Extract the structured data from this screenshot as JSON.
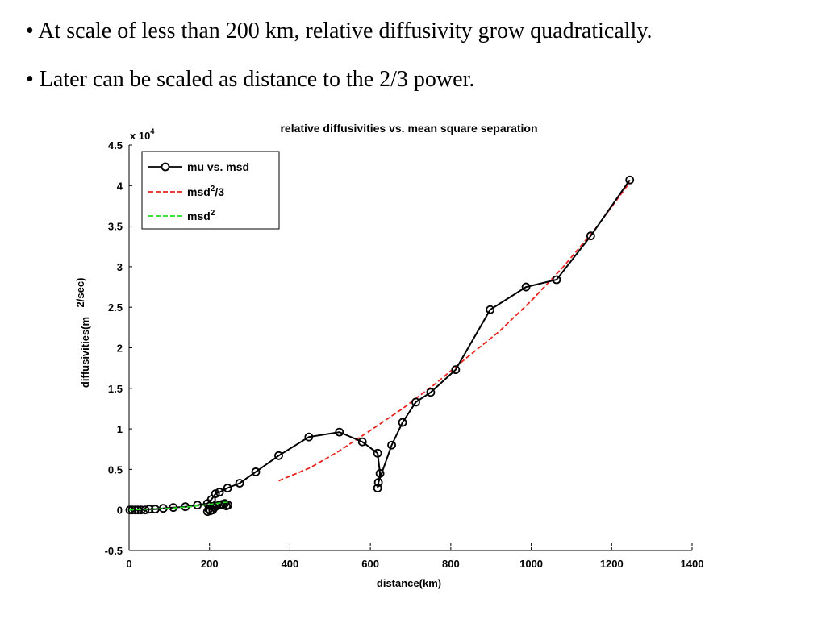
{
  "slide": {
    "bullets": [
      "• At scale of less than 200 km, relative diffusivity grow quadratically.",
      "• Later can be scaled as distance to the 2/3 power."
    ]
  },
  "chart_data": {
    "type": "line",
    "title": "relative diffusivities vs. mean square separation",
    "xlabel": "distance(km)",
    "ylabel": "diffusivities(m",
    "ylabel_unit": "2/sec)",
    "y_multiplier": "x 10",
    "y_multiplier_exp": "4",
    "xlim": [
      0,
      1400
    ],
    "ylim": [
      -0.5,
      4.5
    ],
    "xticks": [
      0,
      200,
      400,
      600,
      800,
      1000,
      1200,
      1400
    ],
    "yticks": [
      -0.5,
      0,
      0.5,
      1,
      1.5,
      2,
      2.5,
      3,
      3.5,
      4,
      4.5
    ],
    "ytick_labels": [
      "-0.5",
      "0",
      "0.5",
      "1",
      "1.5",
      "2",
      "2.5",
      "3",
      "3.5",
      "4",
      "4.5"
    ],
    "grid": false,
    "legend_position": "top-left",
    "series": [
      {
        "name": "mu vs. msd",
        "style": "solid-circle",
        "color": "#000000",
        "x": [
          2,
          8,
          15,
          22,
          30,
          40,
          50,
          65,
          85,
          110,
          140,
          170,
          195,
          205,
          215,
          225,
          245,
          275,
          315,
          372,
          447,
          523,
          580,
          618,
          624,
          618,
          620,
          653,
          680,
          713,
          750,
          812,
          898,
          987,
          1063,
          1148,
          1245
        ],
        "y": [
          0.0,
          0.0,
          0.0,
          0.0,
          0.0,
          0.0,
          0.01,
          0.01,
          0.02,
          0.03,
          0.04,
          0.06,
          0.08,
          0.13,
          0.2,
          0.22,
          0.27,
          0.33,
          0.47,
          0.67,
          0.9,
          0.96,
          0.84,
          0.7,
          0.45,
          0.27,
          0.34,
          0.8,
          1.08,
          1.33,
          1.45,
          1.73,
          2.47,
          2.75,
          2.84,
          3.38,
          4.07
        ]
      },
      {
        "name": "msd2/3",
        "legend_base": "msd",
        "legend_sup": "2",
        "legend_tail": "/3",
        "style": "dashed",
        "color": "#e8231e",
        "x": [
          372,
          450,
          520,
          600,
          680,
          760,
          840,
          920,
          1000,
          1080,
          1160,
          1245
        ],
        "y": [
          0.36,
          0.52,
          0.72,
          0.98,
          1.25,
          1.55,
          1.88,
          2.2,
          2.58,
          3.0,
          3.47,
          4.04
        ]
      },
      {
        "name": "msd2",
        "legend_base": "msd",
        "legend_sup": "2",
        "legend_tail": "",
        "style": "dashed",
        "color": "#22dd22",
        "x": [
          0,
          50,
          100,
          150,
          200,
          250
        ],
        "y": [
          0.0,
          0.01,
          0.02,
          0.04,
          0.07,
          0.1
        ]
      }
    ],
    "cluster_points": [
      {
        "x": 195,
        "y": -0.02
      },
      {
        "x": 198,
        "y": 0.01
      },
      {
        "x": 202,
        "y": -0.01
      },
      {
        "x": 208,
        "y": 0.0
      },
      {
        "x": 212,
        "y": 0.03
      },
      {
        "x": 218,
        "y": 0.05
      },
      {
        "x": 225,
        "y": 0.06
      },
      {
        "x": 232,
        "y": 0.07
      },
      {
        "x": 238,
        "y": 0.08
      },
      {
        "x": 242,
        "y": 0.05
      },
      {
        "x": 246,
        "y": 0.06
      }
    ]
  }
}
